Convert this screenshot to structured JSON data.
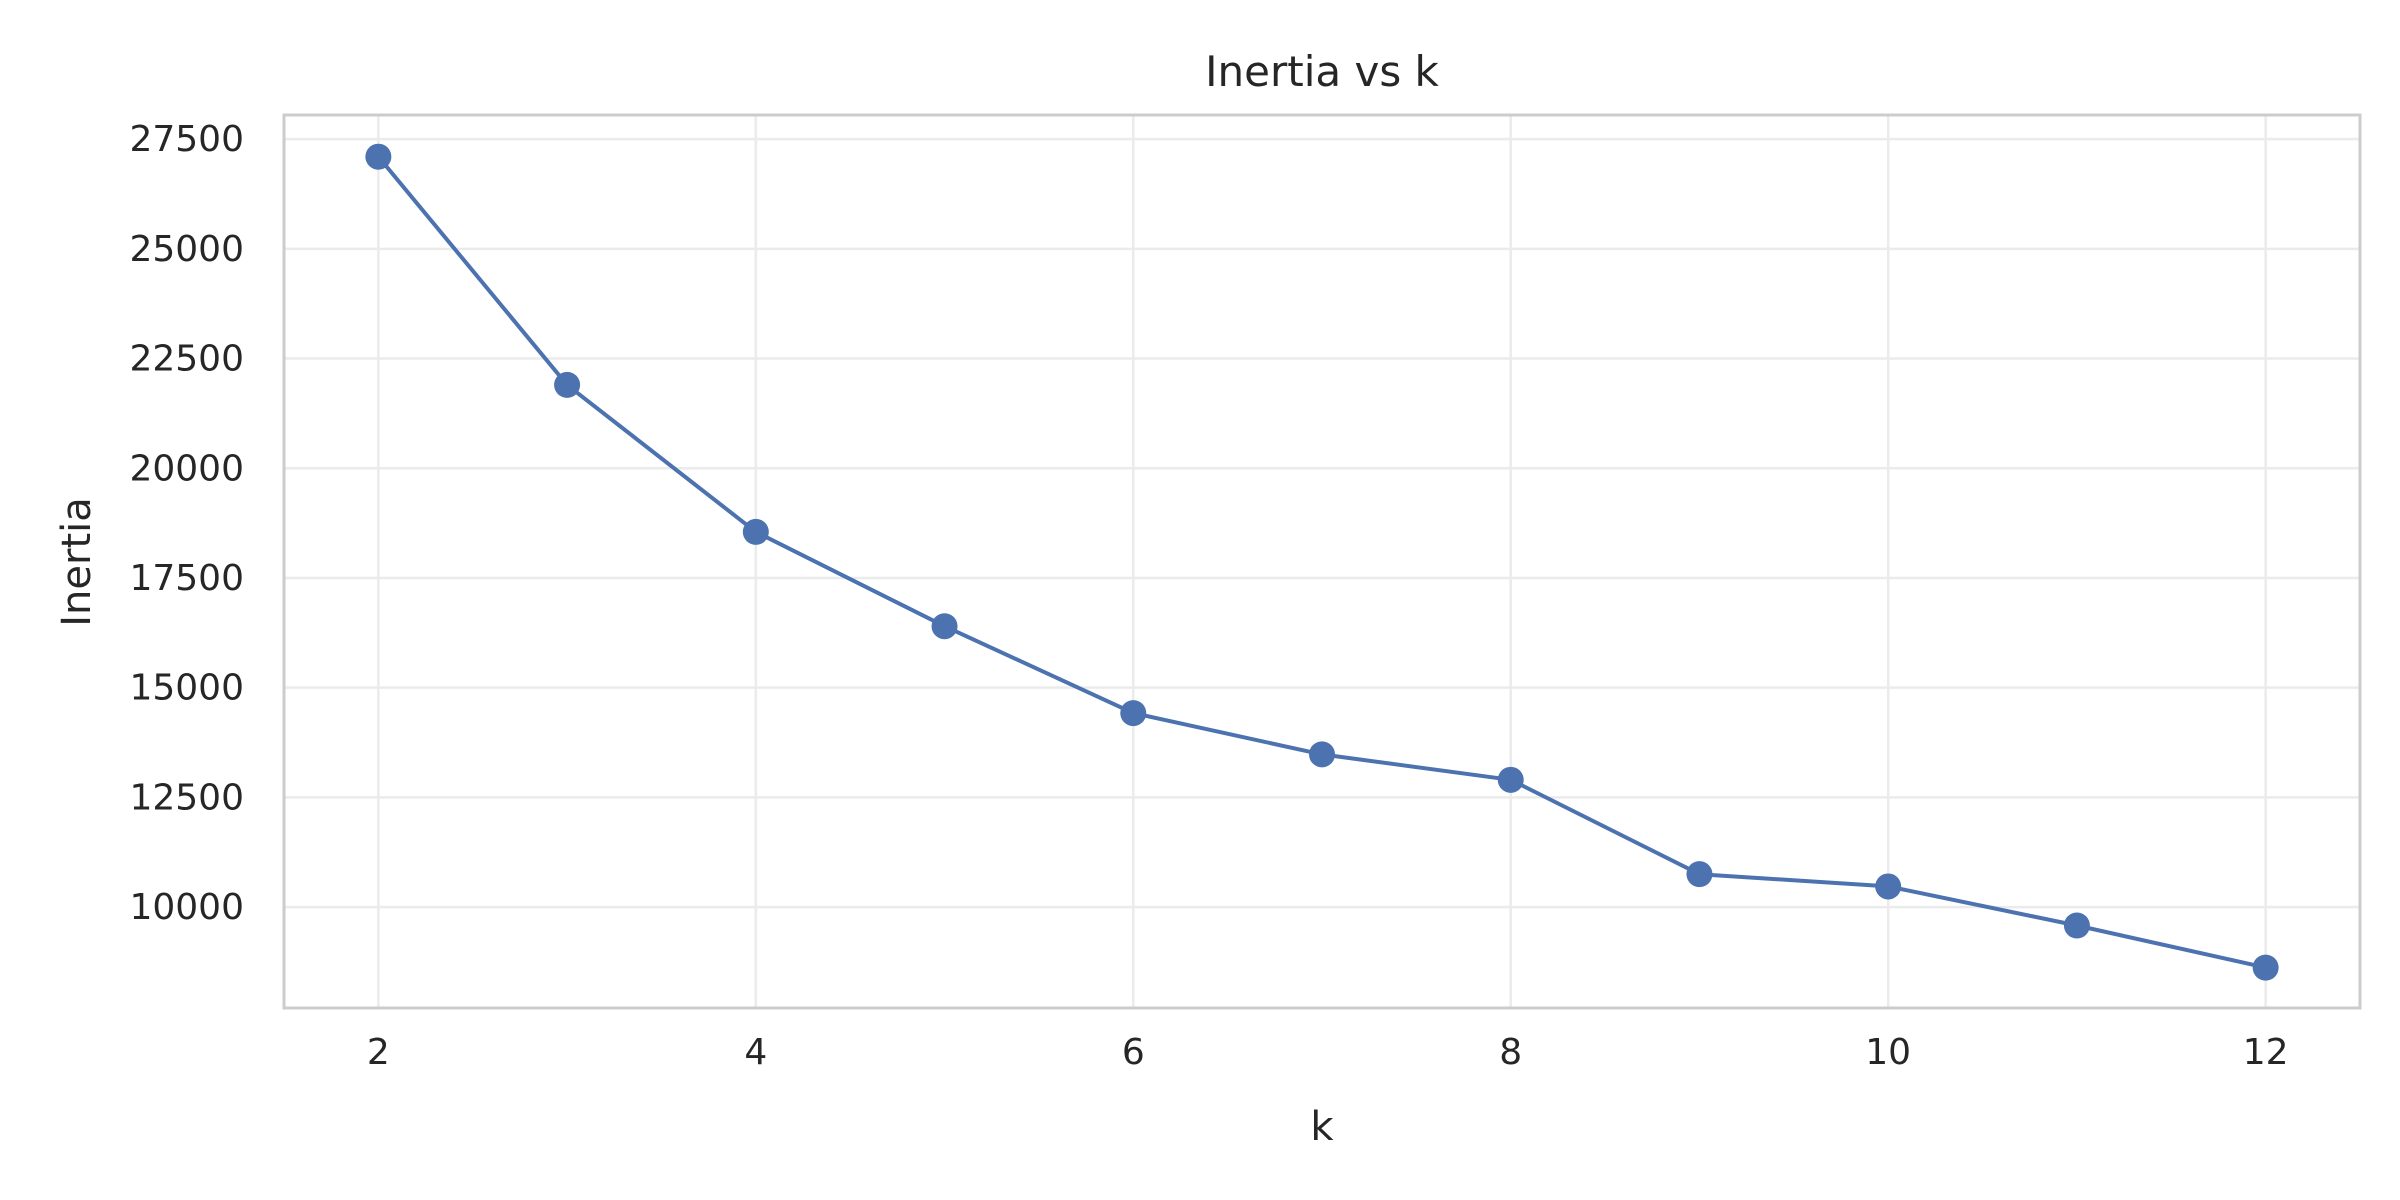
{
  "chart_data": {
    "type": "line",
    "title": "Inertia vs k",
    "xlabel": "k",
    "ylabel": "Inertia",
    "x": [
      2,
      3,
      4,
      5,
      6,
      7,
      8,
      9,
      10,
      11,
      12
    ],
    "series": [
      {
        "values": [
          27100,
          21900,
          18550,
          16400,
          14420,
          13480,
          12900,
          10750,
          10470,
          9580,
          8620
        ],
        "color": "#4c72b0",
        "marker": "circle"
      }
    ],
    "xticks": [
      2,
      4,
      6,
      8,
      10,
      12
    ],
    "yticks": [
      10000,
      12500,
      15000,
      17500,
      20000,
      22500,
      25000,
      27500
    ],
    "xlim": [
      1.5,
      12.5
    ],
    "ylim": [
      7700,
      28050
    ],
    "grid": true,
    "colors": {
      "grid": "#ebebeb",
      "spine": "#cccccc",
      "text": "#262626"
    }
  }
}
